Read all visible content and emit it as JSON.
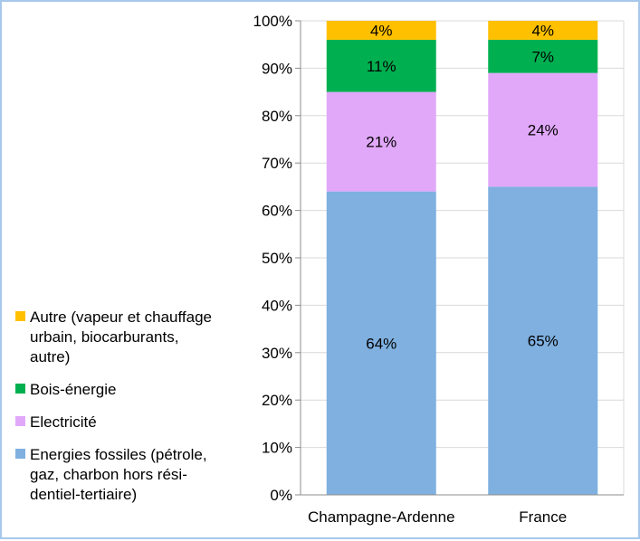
{
  "chart_data": {
    "type": "bar",
    "stacked": true,
    "percent_stacked": true,
    "categories": [
      "Champagne-Ardenne",
      "France"
    ],
    "series": [
      {
        "name": "Energies fossiles (pétrole, gaz, charbon hors rési-dentiel-tertiaire)",
        "color": "#7fb0e0",
        "values": [
          64,
          65
        ],
        "labels": [
          "64%",
          "65%"
        ]
      },
      {
        "name": "Electricité",
        "color": "#e1a8fa",
        "values": [
          21,
          24
        ],
        "labels": [
          "21%",
          "24%"
        ]
      },
      {
        "name": "Bois-énergie",
        "color": "#00b050",
        "values": [
          11,
          7
        ],
        "labels": [
          "11%",
          "7%"
        ]
      },
      {
        "name": "Autre (vapeur et chauffage urbain, biocarburants, autre)",
        "color": "#ffc000",
        "values": [
          4,
          4
        ],
        "labels": [
          "4%",
          "4%"
        ]
      }
    ],
    "y_ticks": [
      "0%",
      "10%",
      "20%",
      "30%",
      "40%",
      "50%",
      "60%",
      "70%",
      "80%",
      "90%",
      "100%"
    ],
    "ylim": [
      0,
      100
    ],
    "grid": true,
    "legend_position": "left",
    "legend_order": [
      "Autre (vapeur et chauffage urbain, biocarburants, autre)",
      "Bois-énergie",
      "Electricité",
      "Energies fossiles (pétrole, gaz, charbon hors rési-dentiel-tertiaire)"
    ],
    "legend_lines": {
      "Autre (vapeur et chauffage urbain, biocarburants, autre)": [
        "Autre (vapeur et chauffage",
        "urbain, biocarburants,",
        "autre)"
      ],
      "Bois-énergie": [
        "Bois-énergie"
      ],
      "Electricité": [
        "Electricité"
      ],
      "Energies fossiles (pétrole, gaz, charbon hors rési-dentiel-tertiaire)": [
        "Energies fossiles (pétrole,",
        "gaz, charbon hors rési-",
        "dentiel-tertiaire)"
      ]
    }
  }
}
